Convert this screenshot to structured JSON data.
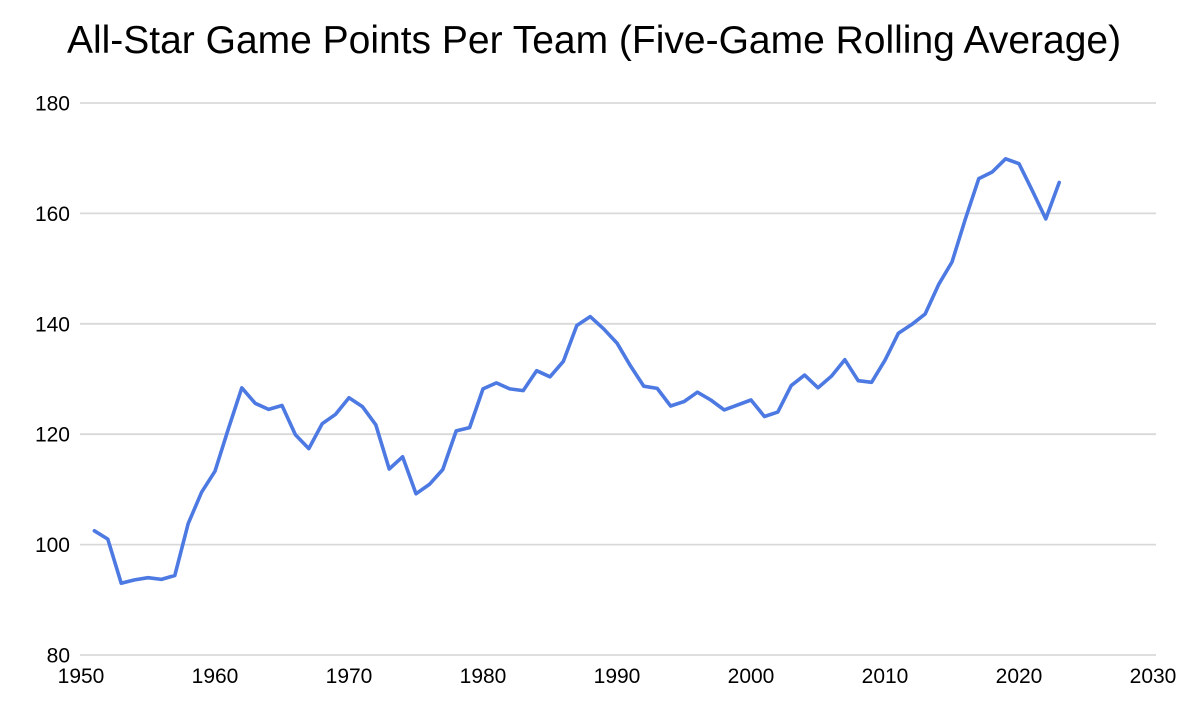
{
  "chart_data": {
    "type": "line",
    "title": "All-Star Game Points Per Team (Five-Game Rolling Average)",
    "xlabel": "",
    "ylabel": "",
    "xlim": [
      1950,
      2030
    ],
    "ylim": [
      80,
      180
    ],
    "xticks": [
      "1950",
      "1960",
      "1970",
      "1980",
      "1990",
      "2000",
      "2010",
      "2020",
      "2030"
    ],
    "yticks": [
      "80",
      "100",
      "120",
      "140",
      "160",
      "180"
    ],
    "grid": "horizontal-only",
    "legend_position": "none",
    "line_color": "#4d79e2",
    "gridline_color": "#d9d9d9",
    "text_color": "#000000",
    "background_color": "#ffffff",
    "series": [
      {
        "name": "points-per-team-five-game-rolling-average",
        "points": [
          [
            1951,
            102.5
          ],
          [
            1952,
            101.0
          ],
          [
            1953,
            93.0
          ],
          [
            1954,
            93.6
          ],
          [
            1955,
            94.0
          ],
          [
            1956,
            93.7
          ],
          [
            1957,
            94.4
          ],
          [
            1958,
            103.8
          ],
          [
            1959,
            109.5
          ],
          [
            1960,
            113.3
          ],
          [
            1961,
            121.0
          ],
          [
            1962,
            128.4
          ],
          [
            1963,
            125.6
          ],
          [
            1964,
            124.5
          ],
          [
            1965,
            125.2
          ],
          [
            1966,
            119.9
          ],
          [
            1967,
            117.4
          ],
          [
            1968,
            121.9
          ],
          [
            1969,
            123.6
          ],
          [
            1970,
            126.6
          ],
          [
            1971,
            125.0
          ],
          [
            1972,
            121.7
          ],
          [
            1973,
            113.7
          ],
          [
            1974,
            115.9
          ],
          [
            1975,
            109.2
          ],
          [
            1976,
            110.9
          ],
          [
            1977,
            113.6
          ],
          [
            1978,
            120.6
          ],
          [
            1979,
            121.2
          ],
          [
            1980,
            128.2
          ],
          [
            1981,
            129.3
          ],
          [
            1982,
            128.2
          ],
          [
            1983,
            127.9
          ],
          [
            1984,
            131.5
          ],
          [
            1985,
            130.4
          ],
          [
            1986,
            133.2
          ],
          [
            1987,
            139.7
          ],
          [
            1988,
            141.3
          ],
          [
            1989,
            139.1
          ],
          [
            1990,
            136.5
          ],
          [
            1991,
            132.4
          ],
          [
            1992,
            128.7
          ],
          [
            1993,
            128.3
          ],
          [
            1994,
            125.1
          ],
          [
            1995,
            125.9
          ],
          [
            1996,
            127.6
          ],
          [
            1997,
            126.2
          ],
          [
            1998,
            124.4
          ],
          [
            1999,
            null
          ],
          [
            2000,
            126.2
          ],
          [
            2001,
            123.2
          ],
          [
            2002,
            124.0
          ],
          [
            2003,
            128.8
          ],
          [
            2004,
            130.7
          ],
          [
            2005,
            128.4
          ],
          [
            2006,
            130.5
          ],
          [
            2007,
            133.5
          ],
          [
            2008,
            129.7
          ],
          [
            2009,
            129.4
          ],
          [
            2010,
            133.4
          ],
          [
            2011,
            138.3
          ],
          [
            2012,
            139.9
          ],
          [
            2013,
            141.8
          ],
          [
            2014,
            147.1
          ],
          [
            2015,
            151.2
          ],
          [
            2016,
            159.0
          ],
          [
            2017,
            166.3
          ],
          [
            2018,
            167.5
          ],
          [
            2019,
            169.9
          ],
          [
            2020,
            169.0
          ],
          [
            2021,
            164.1
          ],
          [
            2022,
            159.0
          ],
          [
            2023,
            165.6
          ]
        ]
      }
    ]
  }
}
